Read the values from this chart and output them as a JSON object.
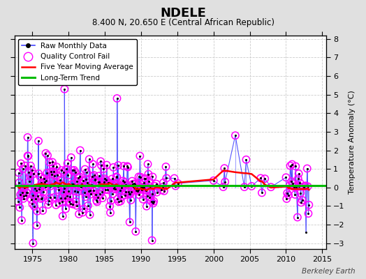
{
  "title": "NDELE",
  "subtitle": "8.400 N, 20.650 E (Central African Republic)",
  "ylabel": "Temperature Anomaly (°C)",
  "watermark": "Berkeley Earth",
  "xlim": [
    1972.5,
    2015.5
  ],
  "ylim": [
    -3.3,
    8.2
  ],
  "yticks": [
    -3,
    -2,
    -1,
    0,
    1,
    2,
    3,
    4,
    5,
    6,
    7,
    8
  ],
  "xticks": [
    1975,
    1980,
    1985,
    1990,
    1995,
    2000,
    2005,
    2010,
    2015
  ],
  "background_color": "#e0e0e0",
  "plot_bg_color": "#ffffff",
  "grid_color": "#cccccc",
  "long_term_trend_y": 0.12,
  "long_term_trend_color": "#00bb00",
  "moving_avg_color": "#ff0000",
  "raw_line_color": "#4444ff",
  "stem_line_color": "#8888ff",
  "raw_dot_color": "#000000",
  "qc_fail_color": "#ff00ff",
  "legend_items": [
    "Raw Monthly Data",
    "Quality Control Fail",
    "Five Year Moving Average",
    "Long-Term Trend"
  ]
}
